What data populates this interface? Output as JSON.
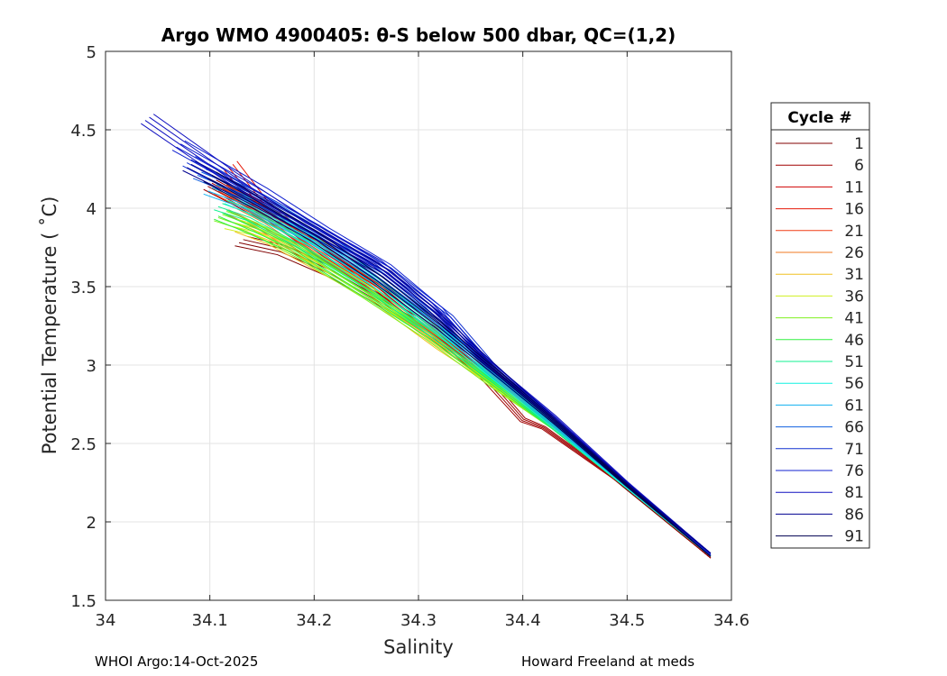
{
  "chart_data": {
    "type": "line",
    "title": "Argo WMO 4900405: θ-S below 500 dbar,  QC=(1,2)",
    "xlabel": "Salinity",
    "ylabel": "Potential Temperature ( ˚C)",
    "xlim": [
      34,
      34.6
    ],
    "ylim": [
      1.5,
      5
    ],
    "xticks": [
      "34",
      "34.1",
      "34.2",
      "34.3",
      "34.4",
      "34.5",
      "34.6"
    ],
    "yticks": [
      "1.5",
      "2",
      "2.5",
      "3",
      "3.5",
      "4",
      "4.5",
      "5"
    ],
    "grid": true,
    "legend_title": "Cycle #",
    "legend_position": "outside-right",
    "series": [
      {
        "name": "1",
        "color": "#800000",
        "points": [
          [
            34.58,
            1.77
          ],
          [
            34.5,
            2.21
          ],
          [
            34.43,
            2.6
          ],
          [
            34.4,
            2.76
          ],
          [
            34.35,
            3.0
          ],
          [
            34.3,
            3.27
          ],
          [
            34.22,
            3.58
          ],
          [
            34.17,
            3.73
          ],
          [
            34.13,
            3.79
          ]
        ]
      },
      {
        "name": "6",
        "color": "#a00000",
        "points": [
          [
            34.58,
            1.77
          ],
          [
            34.5,
            2.22
          ],
          [
            34.42,
            2.6
          ],
          [
            34.4,
            2.65
          ],
          [
            34.36,
            2.95
          ],
          [
            34.3,
            3.3
          ],
          [
            34.24,
            3.62
          ],
          [
            34.17,
            3.9
          ],
          [
            34.1,
            4.15
          ]
        ]
      },
      {
        "name": "11",
        "color": "#d00000",
        "points": [
          [
            34.58,
            1.78
          ],
          [
            34.5,
            2.22
          ],
          [
            34.44,
            2.57
          ],
          [
            34.4,
            2.8
          ],
          [
            34.34,
            3.1
          ],
          [
            34.28,
            3.4
          ],
          [
            34.21,
            3.7
          ],
          [
            34.16,
            3.95
          ],
          [
            34.12,
            4.1
          ]
        ]
      },
      {
        "name": "16",
        "color": "#e41a0a",
        "points": [
          [
            34.58,
            1.78
          ],
          [
            34.5,
            2.23
          ],
          [
            34.44,
            2.58
          ],
          [
            34.41,
            2.75
          ],
          [
            34.34,
            3.1
          ],
          [
            34.27,
            3.45
          ],
          [
            34.2,
            3.75
          ],
          [
            34.15,
            4.02
          ],
          [
            34.12,
            4.27
          ]
        ]
      },
      {
        "name": "21",
        "color": "#f03c14",
        "points": [
          [
            34.58,
            1.78
          ],
          [
            34.5,
            2.22
          ],
          [
            34.43,
            2.6
          ],
          [
            34.38,
            2.85
          ],
          [
            34.33,
            3.12
          ],
          [
            34.27,
            3.42
          ],
          [
            34.21,
            3.72
          ],
          [
            34.15,
            3.98
          ],
          [
            34.11,
            4.12
          ]
        ]
      },
      {
        "name": "26",
        "color": "#f07820",
        "points": [
          [
            34.58,
            1.78
          ],
          [
            34.5,
            2.22
          ],
          [
            34.43,
            2.6
          ],
          [
            34.38,
            2.86
          ],
          [
            34.33,
            3.12
          ],
          [
            34.26,
            3.44
          ],
          [
            34.2,
            3.68
          ],
          [
            34.15,
            3.9
          ],
          [
            34.12,
            4.0
          ]
        ]
      },
      {
        "name": "31",
        "color": "#f0c020",
        "points": [
          [
            34.58,
            1.78
          ],
          [
            34.5,
            2.22
          ],
          [
            34.43,
            2.6
          ],
          [
            34.38,
            2.85
          ],
          [
            34.32,
            3.12
          ],
          [
            34.26,
            3.42
          ],
          [
            34.2,
            3.65
          ],
          [
            34.16,
            3.8
          ],
          [
            34.13,
            3.88
          ]
        ]
      },
      {
        "name": "36",
        "color": "#d0f020",
        "points": [
          [
            34.58,
            1.78
          ],
          [
            34.5,
            2.22
          ],
          [
            34.43,
            2.6
          ],
          [
            34.38,
            2.84
          ],
          [
            34.32,
            3.15
          ],
          [
            34.26,
            3.44
          ],
          [
            34.2,
            3.68
          ],
          [
            34.15,
            3.85
          ],
          [
            34.12,
            3.9
          ]
        ]
      },
      {
        "name": "41",
        "color": "#80f020",
        "points": [
          [
            34.58,
            1.78
          ],
          [
            34.5,
            2.22
          ],
          [
            34.43,
            2.6
          ],
          [
            34.37,
            2.88
          ],
          [
            34.31,
            3.18
          ],
          [
            34.25,
            3.45
          ],
          [
            34.19,
            3.7
          ],
          [
            34.14,
            3.88
          ],
          [
            34.11,
            3.95
          ]
        ]
      },
      {
        "name": "46",
        "color": "#30f040",
        "points": [
          [
            34.58,
            1.78
          ],
          [
            34.5,
            2.22
          ],
          [
            34.43,
            2.6
          ],
          [
            34.37,
            2.9
          ],
          [
            34.31,
            3.2
          ],
          [
            34.24,
            3.5
          ],
          [
            34.18,
            3.75
          ],
          [
            34.13,
            3.9
          ],
          [
            34.11,
            3.96
          ]
        ]
      },
      {
        "name": "51",
        "color": "#10f090",
        "points": [
          [
            34.58,
            1.78
          ],
          [
            34.5,
            2.22
          ],
          [
            34.43,
            2.6
          ],
          [
            34.37,
            2.92
          ],
          [
            34.31,
            3.22
          ],
          [
            34.25,
            3.52
          ],
          [
            34.19,
            3.77
          ],
          [
            34.14,
            3.95
          ],
          [
            34.11,
            4.02
          ]
        ]
      },
      {
        "name": "56",
        "color": "#10f0e0",
        "points": [
          [
            34.58,
            1.78
          ],
          [
            34.5,
            2.22
          ],
          [
            34.43,
            2.61
          ],
          [
            34.37,
            2.94
          ],
          [
            34.32,
            3.22
          ],
          [
            34.26,
            3.52
          ],
          [
            34.2,
            3.78
          ],
          [
            34.14,
            4.0
          ],
          [
            34.12,
            4.06
          ]
        ]
      },
      {
        "name": "61",
        "color": "#10b0f0",
        "points": [
          [
            34.58,
            1.78
          ],
          [
            34.5,
            2.23
          ],
          [
            34.43,
            2.62
          ],
          [
            34.37,
            2.95
          ],
          [
            34.32,
            3.25
          ],
          [
            34.26,
            3.55
          ],
          [
            34.2,
            3.8
          ],
          [
            34.14,
            4.02
          ],
          [
            34.1,
            4.12
          ]
        ]
      },
      {
        "name": "66",
        "color": "#1060e0",
        "points": [
          [
            34.58,
            1.79
          ],
          [
            34.5,
            2.24
          ],
          [
            34.43,
            2.64
          ],
          [
            34.37,
            2.98
          ],
          [
            34.32,
            3.28
          ],
          [
            34.26,
            3.58
          ],
          [
            34.2,
            3.85
          ],
          [
            34.14,
            4.08
          ],
          [
            34.09,
            4.22
          ]
        ]
      },
      {
        "name": "71",
        "color": "#1030d0",
        "points": [
          [
            34.58,
            1.79
          ],
          [
            34.5,
            2.24
          ],
          [
            34.43,
            2.65
          ],
          [
            34.37,
            3.0
          ],
          [
            34.33,
            3.3
          ],
          [
            34.27,
            3.6
          ],
          [
            34.2,
            3.87
          ],
          [
            34.13,
            4.12
          ],
          [
            34.08,
            4.3
          ]
        ]
      },
      {
        "name": "76",
        "color": "#1020d0",
        "points": [
          [
            34.58,
            1.79
          ],
          [
            34.5,
            2.24
          ],
          [
            34.43,
            2.66
          ],
          [
            34.36,
            3.05
          ],
          [
            34.32,
            3.35
          ],
          [
            34.27,
            3.62
          ],
          [
            34.21,
            3.85
          ],
          [
            34.15,
            4.1
          ],
          [
            34.07,
            4.4
          ]
        ]
      },
      {
        "name": "81",
        "color": "#1010c0",
        "points": [
          [
            34.58,
            1.8
          ],
          [
            34.5,
            2.25
          ],
          [
            34.43,
            2.67
          ],
          [
            34.36,
            3.05
          ],
          [
            34.31,
            3.38
          ],
          [
            34.26,
            3.65
          ],
          [
            34.19,
            3.9
          ],
          [
            34.12,
            4.2
          ],
          [
            34.04,
            4.57
          ]
        ]
      },
      {
        "name": "86",
        "color": "#000090",
        "points": [
          [
            34.58,
            1.8
          ],
          [
            34.5,
            2.24
          ],
          [
            34.43,
            2.65
          ],
          [
            34.37,
            3.0
          ],
          [
            34.32,
            3.3
          ],
          [
            34.27,
            3.58
          ],
          [
            34.2,
            3.85
          ],
          [
            34.13,
            4.1
          ],
          [
            34.08,
            4.27
          ]
        ]
      },
      {
        "name": "91",
        "color": "#000050",
        "points": [
          [
            34.58,
            1.78
          ],
          [
            34.5,
            2.23
          ],
          [
            34.43,
            2.64
          ],
          [
            34.38,
            2.92
          ],
          [
            34.32,
            3.25
          ],
          [
            34.26,
            3.55
          ],
          [
            34.2,
            3.82
          ],
          [
            34.14,
            4.05
          ],
          [
            34.1,
            4.2
          ]
        ]
      }
    ]
  },
  "footer": {
    "left": "WHOI Argo:14-Oct-2025",
    "right": "Howard Freeland at meds"
  }
}
